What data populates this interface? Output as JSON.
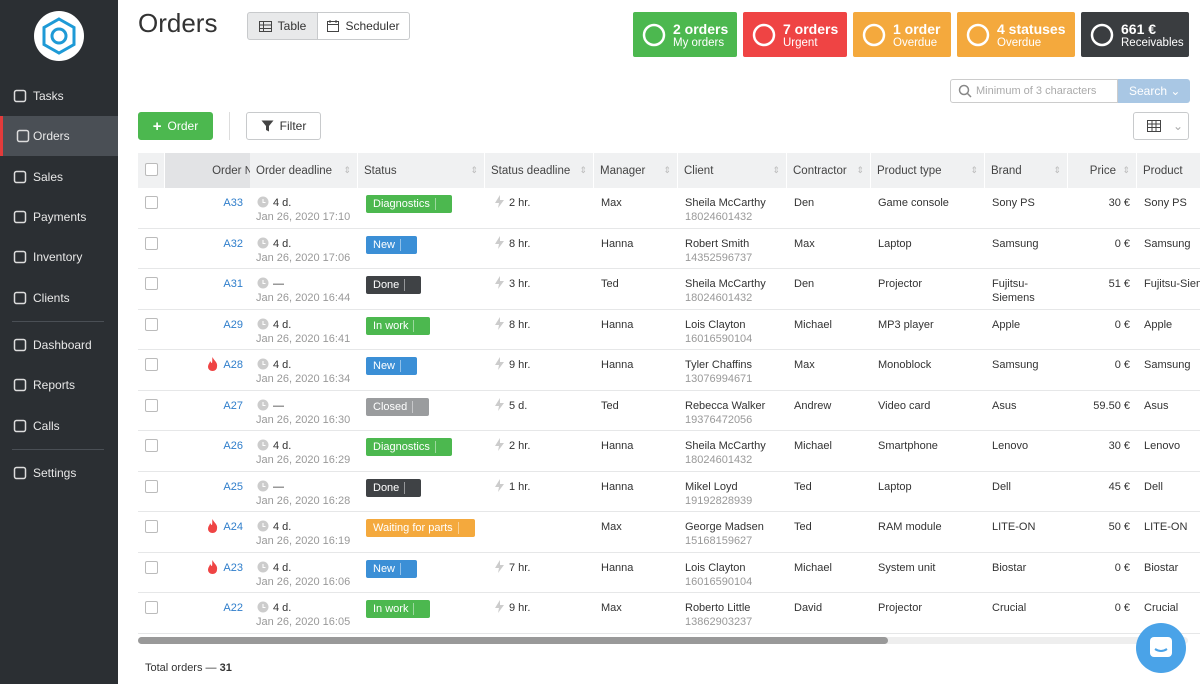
{
  "sidebar": {
    "nav": [
      "Tasks",
      "Orders",
      "Sales",
      "Payments",
      "Inventory",
      "Clients",
      "Dashboard",
      "Reports",
      "Calls",
      "Settings"
    ]
  },
  "header": {
    "title": "Orders",
    "views": [
      "Table",
      "Scheduler"
    ],
    "badges": [
      {
        "count": "2 orders",
        "label": "My orders",
        "color": "#4cb84f"
      },
      {
        "count": "7 orders",
        "label": "Urgent",
        "color": "#ef4444"
      },
      {
        "count": "1 order",
        "label": "Overdue",
        "color": "#f4a93d"
      },
      {
        "count": "4 statuses",
        "label": "Overdue",
        "color": "#f4a93d"
      },
      {
        "count": "661 €",
        "label": "Receivables",
        "color": "#3a3d40"
      }
    ]
  },
  "toolbar": {
    "order_button": "Order",
    "filter_button": "Filter",
    "search_placeholder": "Minimum of 3 characters",
    "search_button": "Search"
  },
  "table": {
    "columns": [
      "Order №",
      "Order deadline",
      "Status",
      "Status deadline",
      "Manager",
      "Client",
      "Contractor",
      "Product type",
      "Brand",
      "Price",
      "Product"
    ],
    "rows": [
      {
        "order": "A33",
        "deadline": "4 d.",
        "date": "Jan 26, 2020 17:10",
        "status": "Diagnostics",
        "status_color": "#4cb84f",
        "status_deadline": "2 hr.",
        "manager": "Max",
        "client": "Sheila McCarthy",
        "phone": "18024601432",
        "contractor": "Den",
        "product_type": "Game console",
        "brand": "Sony PS",
        "price": "30 €",
        "product": "Sony PS"
      },
      {
        "order": "A32",
        "deadline": "4 d.",
        "date": "Jan 26, 2020 17:06",
        "status": "New",
        "status_color": "#3b8fd6",
        "status_deadline": "8 hr.",
        "manager": "Hanna",
        "client": "Robert Smith",
        "phone": "14352596737",
        "contractor": "Max",
        "product_type": "Laptop",
        "brand": "Samsung",
        "price": "0 €",
        "product": "Samsung"
      },
      {
        "order": "A31",
        "deadline": "—",
        "date": "Jan 26, 2020 16:44",
        "status": "Done",
        "status_color": "#3f4245",
        "status_deadline": "3 hr.",
        "manager": "Ted",
        "client": "Sheila McCarthy",
        "phone": "18024601432",
        "contractor": "Den",
        "product_type": "Projector",
        "brand": "Fujitsu-Siemens",
        "price": "51 €",
        "product": "Fujitsu-Siemens"
      },
      {
        "order": "A29",
        "deadline": "4 d.",
        "date": "Jan 26, 2020 16:41",
        "status": "In work",
        "status_color": "#4cb84f",
        "status_deadline": "8 hr.",
        "manager": "Hanna",
        "client": "Lois Clayton",
        "phone": "16016590104",
        "contractor": "Michael",
        "product_type": "MP3 player",
        "brand": "Apple",
        "price": "0 €",
        "product": "Apple"
      },
      {
        "order": "A28",
        "urgent": true,
        "deadline": "4 d.",
        "date": "Jan 26, 2020 16:34",
        "status": "New",
        "status_color": "#3b8fd6",
        "status_deadline": "9 hr.",
        "manager": "Hanna",
        "client": "Tyler Chaffins",
        "phone": "13076994671",
        "contractor": "Max",
        "product_type": "Monoblock",
        "brand": "Samsung",
        "price": "0 €",
        "product": "Samsung"
      },
      {
        "order": "A27",
        "deadline": "—",
        "date": "Jan 26, 2020 16:30",
        "status": "Closed",
        "status_color": "#9a9c9e",
        "status_deadline": "5 d.",
        "manager": "Ted",
        "client": "Rebecca Walker",
        "phone": "19376472056",
        "contractor": "Andrew",
        "product_type": "Video card",
        "brand": "Asus",
        "price": "59.50 €",
        "product": "Asus"
      },
      {
        "order": "A26",
        "deadline": "4 d.",
        "date": "Jan 26, 2020 16:29",
        "status": "Diagnostics",
        "status_color": "#4cb84f",
        "status_deadline": "2 hr.",
        "manager": "Hanna",
        "client": "Sheila McCarthy",
        "phone": "18024601432",
        "contractor": "Michael",
        "product_type": "Smartphone",
        "brand": "Lenovo",
        "price": "30 €",
        "product": "Lenovo"
      },
      {
        "order": "A25",
        "deadline": "—",
        "date": "Jan 26, 2020 16:28",
        "status": "Done",
        "status_color": "#3f4245",
        "status_deadline": "1 hr.",
        "manager": "Hanna",
        "client": "Mikel Loyd",
        "phone": "19192828939",
        "contractor": "Ted",
        "product_type": "Laptop",
        "brand": "Dell",
        "price": "45 €",
        "product": "Dell"
      },
      {
        "order": "A24",
        "urgent": true,
        "deadline": "4 d.",
        "date": "Jan 26, 2020 16:19",
        "status": "Waiting for parts",
        "status_color": "#f4a93d",
        "manager": "Max",
        "client": "George Madsen",
        "phone": "15168159627",
        "contractor": "Ted",
        "product_type": "RAM module",
        "brand": "LITE-ON",
        "price": "50 €",
        "product": "LITE-ON"
      },
      {
        "order": "A23",
        "urgent": true,
        "deadline": "4 d.",
        "date": "Jan 26, 2020 16:06",
        "status": "New",
        "status_color": "#3b8fd6",
        "status_deadline": "7 hr.",
        "manager": "Hanna",
        "client": "Lois Clayton",
        "phone": "16016590104",
        "contractor": "Michael",
        "product_type": "System unit",
        "brand": "Biostar",
        "price": "0 €",
        "product": "Biostar"
      },
      {
        "order": "A22",
        "deadline": "4 d.",
        "date": "Jan 26, 2020 16:05",
        "status": "In work",
        "status_color": "#4cb84f",
        "status_deadline": "9 hr.",
        "manager": "Max",
        "client": "Roberto Little",
        "phone": "13862903237",
        "contractor": "David",
        "product_type": "Projector",
        "brand": "Crucial",
        "price": "0 €",
        "product": "Crucial"
      }
    ]
  },
  "footer": {
    "label": "Total orders —",
    "count": "31"
  }
}
